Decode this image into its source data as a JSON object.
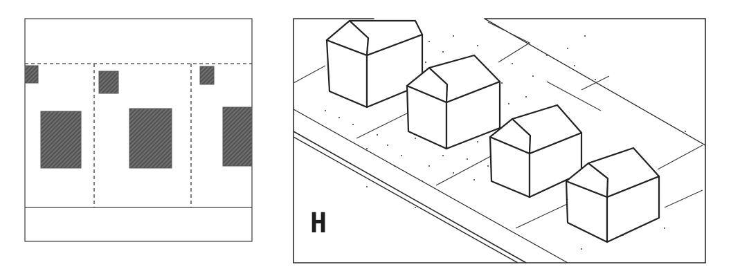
{
  "figure": {
    "panel_label": "H",
    "colors": {
      "ink": "#2a2a2a",
      "graphite_fill": "#6e6e6e",
      "paper": "#ffffff"
    }
  }
}
